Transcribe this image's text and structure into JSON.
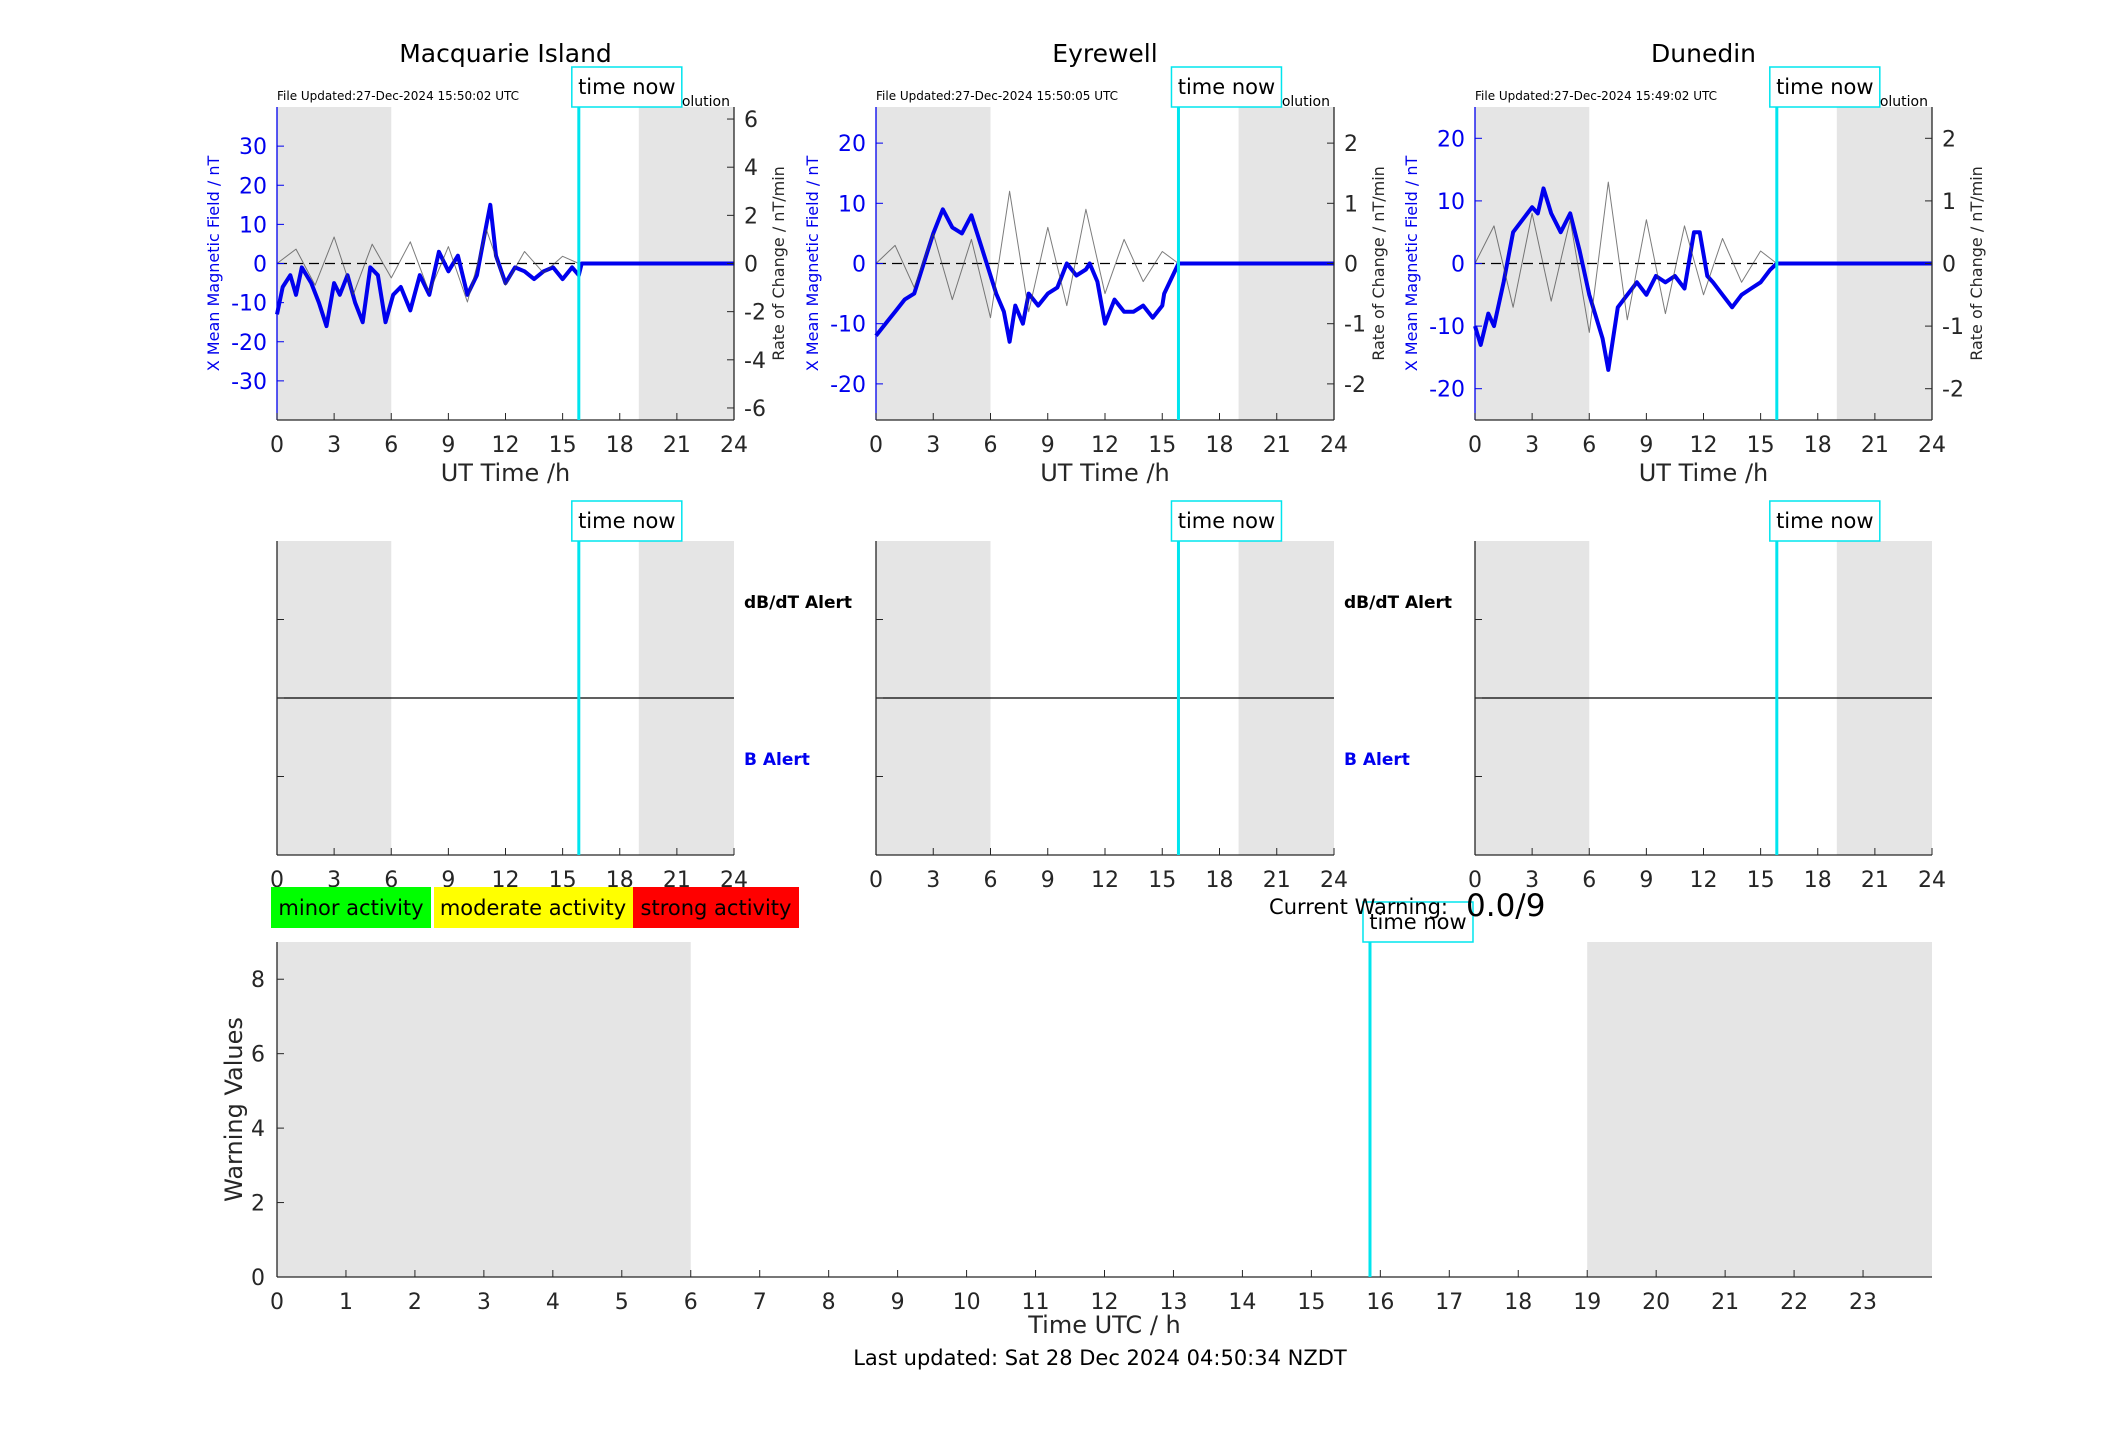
{
  "chart_data": [
    {
      "type": "line",
      "title": "Macquarie Island",
      "file_updated": "File Updated:27-Dec-2024 15:50:02 UTC",
      "resolution": "minute resolution",
      "xlabel": "UT Time /h",
      "ylabel_left": "X Mean Magnetic Field / nT",
      "ylabel_right": "Rate of Change / nT/min",
      "xlim": [
        0,
        24
      ],
      "ylim_left": [
        -40,
        40
      ],
      "ylim_right": [
        -6.5,
        6.5
      ],
      "xticks": [
        0,
        3,
        6,
        9,
        12,
        15,
        18,
        21,
        24
      ],
      "yticks_left": [
        -30,
        -20,
        -10,
        0,
        10,
        20,
        30
      ],
      "yticks_right": [
        -6,
        -4,
        -2,
        0,
        2,
        4,
        6
      ],
      "shaded_x": [
        [
          0,
          6
        ],
        [
          19,
          24
        ]
      ],
      "time_now": 15.85,
      "time_now_label": "time now",
      "series": [
        {
          "name": "",
          "axis": "left",
          "color": "#0000ee",
          "x": [
            0,
            0.3,
            0.7,
            1,
            1.3,
            1.8,
            2.2,
            2.6,
            3,
            3.3,
            3.7,
            4.1,
            4.5,
            4.9,
            5.3,
            5.7,
            6.1,
            6.5,
            7,
            7.5,
            8,
            8.5,
            9,
            9.5,
            10,
            10.5,
            11,
            11.2,
            11.5,
            12,
            12.5,
            13,
            13.5,
            14,
            14.5,
            15,
            15.5,
            15.85,
            16,
            24
          ],
          "y": [
            -13,
            -6,
            -3,
            -8,
            -1,
            -5,
            -10,
            -16,
            -5,
            -8,
            -3,
            -10,
            -15,
            -1,
            -3,
            -15,
            -8,
            -6,
            -12,
            -3,
            -8,
            3,
            -2,
            2,
            -8,
            -3,
            10,
            15,
            2,
            -5,
            -1,
            -2,
            -4,
            -2,
            -1,
            -4,
            -1,
            -3,
            0,
            0
          ]
        },
        {
          "name": "",
          "axis": "right",
          "color": "#444444",
          "x": [
            0,
            1,
            2,
            3,
            4,
            5,
            6,
            7,
            8,
            9,
            10,
            11,
            12,
            13,
            14,
            15,
            15.85
          ],
          "y": [
            0,
            0.6,
            -0.9,
            1.1,
            -1.3,
            0.8,
            -0.6,
            0.9,
            -1.2,
            0.7,
            -1.6,
            1.4,
            -0.9,
            0.5,
            -0.4,
            0.3,
            0
          ]
        }
      ]
    },
    {
      "type": "line",
      "title": "Eyrewell",
      "file_updated": "File Updated:27-Dec-2024 15:50:05 UTC",
      "resolution": "minute resolution",
      "xlabel": "UT Time /h",
      "ylabel_left": "X Mean Magnetic Field / nT",
      "ylabel_right": "Rate of Change / nT/min",
      "xlim": [
        0,
        24
      ],
      "ylim_left": [
        -26,
        26
      ],
      "ylim_right": [
        -2.6,
        2.6
      ],
      "xticks": [
        0,
        3,
        6,
        9,
        12,
        15,
        18,
        21,
        24
      ],
      "yticks_left": [
        -20,
        -10,
        0,
        10,
        20
      ],
      "yticks_right": [
        -2,
        -1,
        0,
        1,
        2
      ],
      "shaded_x": [
        [
          0,
          6
        ],
        [
          19,
          24
        ]
      ],
      "time_now": 15.85,
      "time_now_label": "time now",
      "series": [
        {
          "name": "",
          "axis": "left",
          "color": "#0000ee",
          "x": [
            0,
            0.5,
            1,
            1.5,
            2,
            2.5,
            3,
            3.5,
            4,
            4.5,
            5,
            5.5,
            6,
            6.3,
            6.7,
            7,
            7.3,
            7.7,
            8,
            8.5,
            9,
            9.5,
            10,
            10.5,
            11,
            11.2,
            11.6,
            12,
            12.5,
            13,
            13.5,
            14,
            14.5,
            15,
            15.1,
            15.85,
            24
          ],
          "y": [
            -12,
            -10,
            -8,
            -6,
            -5,
            0,
            5,
            9,
            6,
            5,
            8,
            3,
            -2,
            -5,
            -8,
            -13,
            -7,
            -10,
            -5,
            -7,
            -5,
            -4,
            0,
            -2,
            -1,
            0,
            -3,
            -10,
            -6,
            -8,
            -8,
            -7,
            -9,
            -7,
            -5,
            0,
            0
          ]
        },
        {
          "name": "",
          "axis": "right",
          "color": "#444444",
          "x": [
            0,
            1,
            2,
            3,
            4,
            5,
            6,
            7,
            8,
            9,
            10,
            11,
            12,
            13,
            14,
            15,
            15.85
          ],
          "y": [
            0,
            0.3,
            -0.4,
            0.5,
            -0.6,
            0.4,
            -0.9,
            1.2,
            -0.8,
            0.6,
            -0.7,
            0.9,
            -0.5,
            0.4,
            -0.3,
            0.2,
            0
          ]
        }
      ]
    },
    {
      "type": "line",
      "title": "Dunedin",
      "file_updated": "File Updated:27-Dec-2024 15:49:02 UTC",
      "resolution": "minute resolution",
      "xlabel": "UT Time /h",
      "ylabel_left": "X Mean Magnetic Field / nT",
      "ylabel_right": "Rate of Change / nT/min",
      "xlim": [
        0,
        24
      ],
      "ylim_left": [
        -25,
        25
      ],
      "ylim_right": [
        -2.5,
        2.5
      ],
      "xticks": [
        0,
        3,
        6,
        9,
        12,
        15,
        18,
        21,
        24
      ],
      "yticks_left": [
        -20,
        -10,
        0,
        10,
        20
      ],
      "yticks_right": [
        -2,
        -1,
        0,
        1,
        2
      ],
      "shaded_x": [
        [
          0,
          6
        ],
        [
          19,
          24
        ]
      ],
      "time_now": 15.85,
      "time_now_label": "time now",
      "series": [
        {
          "name": "",
          "axis": "left",
          "color": "#0000ee",
          "x": [
            0,
            0.3,
            0.7,
            1,
            1.5,
            2,
            2.5,
            3,
            3.3,
            3.6,
            4,
            4.5,
            5,
            5.5,
            6,
            6.3,
            6.7,
            7,
            7.5,
            8,
            8.5,
            9,
            9.5,
            10,
            10.5,
            11,
            11.5,
            11.8,
            12.2,
            12.5,
            13,
            13.5,
            14,
            14.5,
            15,
            15.5,
            15.85,
            24
          ],
          "y": [
            -10,
            -13,
            -8,
            -10,
            -3,
            5,
            7,
            9,
            8,
            12,
            8,
            5,
            8,
            2,
            -5,
            -8,
            -12,
            -17,
            -7,
            -5,
            -3,
            -5,
            -2,
            -3,
            -2,
            -4,
            5,
            5,
            -2,
            -3,
            -5,
            -7,
            -5,
            -4,
            -3,
            -1,
            0,
            0
          ]
        },
        {
          "name": "",
          "axis": "right",
          "color": "#444444",
          "x": [
            0,
            1,
            2,
            3,
            4,
            5,
            6,
            7,
            8,
            9,
            10,
            11,
            12,
            13,
            14,
            15,
            15.85
          ],
          "y": [
            0,
            0.6,
            -0.7,
            0.8,
            -0.6,
            0.7,
            -1.1,
            1.3,
            -0.9,
            0.7,
            -0.8,
            0.6,
            -0.5,
            0.4,
            -0.3,
            0.2,
            0
          ]
        }
      ]
    },
    {
      "type": "line",
      "title": "",
      "xlabel": "",
      "xlim": [
        0,
        24
      ],
      "xticks": [
        0,
        3,
        6,
        9,
        12,
        15,
        18,
        21,
        24
      ],
      "shaded_x": [
        [
          0,
          6
        ],
        [
          19,
          24
        ]
      ],
      "time_now": 15.85,
      "time_now_label": "time now",
      "labels": {
        "dbdt": "dB/dT Alert",
        "b": "B Alert"
      },
      "series": []
    },
    {
      "type": "line",
      "title": "",
      "xlabel": "",
      "xlim": [
        0,
        24
      ],
      "xticks": [
        0,
        3,
        6,
        9,
        12,
        15,
        18,
        21,
        24
      ],
      "shaded_x": [
        [
          0,
          6
        ],
        [
          19,
          24
        ]
      ],
      "time_now": 15.85,
      "time_now_label": "time now",
      "labels": {
        "dbdt": "dB/dT Alert",
        "b": "B Alert"
      },
      "series": []
    },
    {
      "type": "line",
      "title": "",
      "xlabel": "",
      "xlim": [
        0,
        24
      ],
      "xticks": [
        0,
        3,
        6,
        9,
        12,
        15,
        18,
        21,
        24
      ],
      "shaded_x": [
        [
          0,
          6
        ],
        [
          19,
          24
        ]
      ],
      "time_now": 15.85,
      "time_now_label": "time now",
      "series": []
    },
    {
      "type": "line",
      "title": "",
      "xlabel": "Time UTC / h",
      "ylabel": "Warning Values",
      "xlim": [
        0,
        24
      ],
      "ylim": [
        0,
        9
      ],
      "xticks": [
        0,
        1,
        2,
        3,
        4,
        5,
        6,
        7,
        8,
        9,
        10,
        11,
        12,
        13,
        14,
        15,
        16,
        17,
        18,
        19,
        20,
        21,
        22,
        23
      ],
      "yticks": [
        0,
        2,
        4,
        6,
        8
      ],
      "shaded_x": [
        [
          0,
          6
        ],
        [
          19,
          24
        ]
      ],
      "time_now": 15.85,
      "time_now_label": "time now",
      "series": []
    }
  ],
  "legend": {
    "items": [
      {
        "label": "minor activity",
        "color": "#00ff00"
      },
      {
        "label": "moderate activity",
        "color": "#ffff00"
      },
      {
        "label": "strong activity",
        "color": "#ff0000"
      }
    ]
  },
  "current_warning": {
    "label": "Current Warning:",
    "value": "0.0/9"
  },
  "footer": {
    "last_updated": "Last updated: Sat 28 Dec 2024 04:50:34 NZDT"
  },
  "colors": {
    "shade": "#e5e5e5",
    "time_now": "#00e5ee",
    "field": "#0000ee",
    "rate": "#444444"
  }
}
